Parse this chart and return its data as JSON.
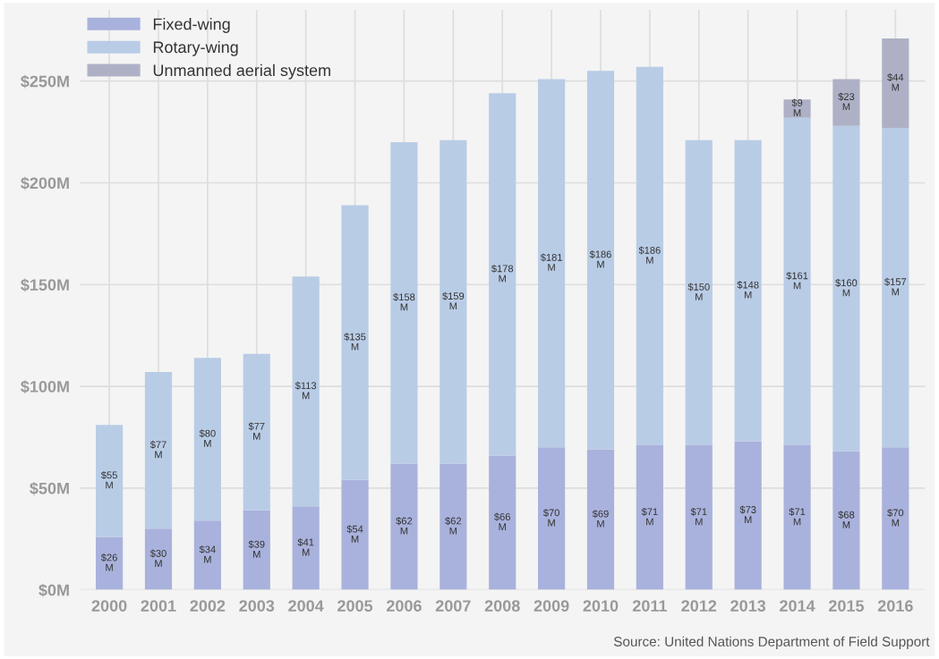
{
  "chart_data": {
    "type": "bar",
    "stacked": true,
    "categories": [
      "2000",
      "2001",
      "2002",
      "2003",
      "2004",
      "2005",
      "2006",
      "2007",
      "2008",
      "2009",
      "2010",
      "2011",
      "2012",
      "2013",
      "2014",
      "2015",
      "2016"
    ],
    "series": [
      {
        "name": "Fixed-wing",
        "color": "#a9b2dc",
        "values": [
          26,
          30,
          34,
          39,
          41,
          54,
          62,
          62,
          66,
          70,
          69,
          71,
          71,
          73,
          71,
          68,
          70
        ],
        "value_labels": [
          "$26\nM",
          "$30\nM",
          "$34\nM",
          "$39\nM",
          "$41\nM",
          "$54\nM",
          "$62\nM",
          "$62\nM",
          "$66\nM",
          "$70\nM",
          "$69\nM",
          "$71\nM",
          "$71\nM",
          "$73\nM",
          "$71\nM",
          "$68\nM",
          "$70\nM"
        ]
      },
      {
        "name": "Rotary-wing",
        "color": "#b9cce6",
        "values": [
          55,
          77,
          80,
          77,
          113,
          135,
          158,
          159,
          178,
          181,
          186,
          186,
          150,
          148,
          161,
          160,
          157
        ],
        "value_labels": [
          "$55\nM",
          "$77\nM",
          "$80\nM",
          "$77\nM",
          "$113\nM",
          "$135\nM",
          "$158\nM",
          "$159\nM",
          "$178\nM",
          "$181\nM",
          "$186\nM",
          "$186\nM",
          "$150\nM",
          "$148\nM",
          "$161\nM",
          "$160\nM",
          "$157\nM"
        ]
      },
      {
        "name": "Unmanned aerial system",
        "color": "#aeb1c6",
        "values": [
          null,
          null,
          null,
          null,
          null,
          null,
          null,
          null,
          null,
          null,
          null,
          null,
          null,
          null,
          9,
          23,
          44
        ],
        "value_labels": [
          null,
          null,
          null,
          null,
          null,
          null,
          null,
          null,
          null,
          null,
          null,
          null,
          null,
          null,
          "$9\nM",
          "$23\nM",
          "$44\nM"
        ]
      }
    ],
    "ylim": [
      0,
      285
    ],
    "yticks": [
      {
        "value": 0,
        "label": "$0M"
      },
      {
        "value": 50,
        "label": "$50M"
      },
      {
        "value": 100,
        "label": "$100M"
      },
      {
        "value": 150,
        "label": "$150M"
      },
      {
        "value": 200,
        "label": "$200M"
      },
      {
        "value": 250,
        "label": "$250M"
      }
    ],
    "grid": true,
    "legend": "top left",
    "annotations": [
      "Source: United Nations Department of Field Support"
    ]
  }
}
